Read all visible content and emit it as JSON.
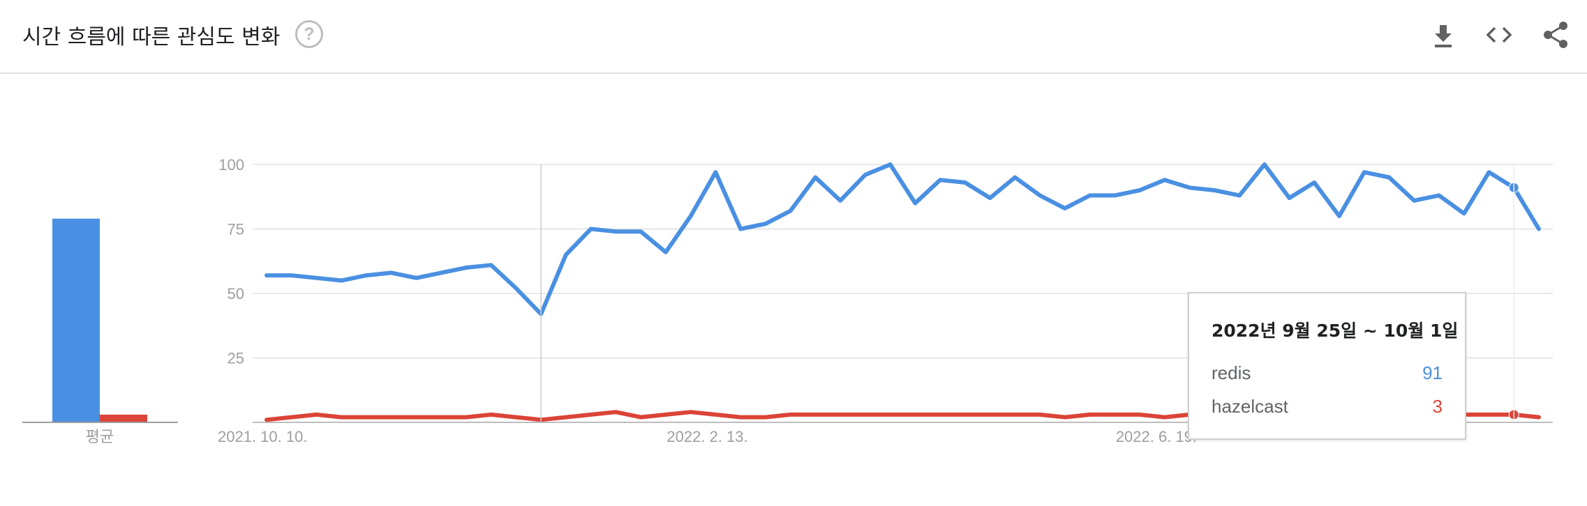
{
  "header": {
    "title": "시간 흐름에 따른 관심도 변화",
    "help_icon_glyph": "?",
    "icons": [
      "download-icon",
      "embed-code-icon",
      "share-icon"
    ]
  },
  "colors": {
    "redis": "#4a90e2",
    "hazelcast": "#db4437",
    "grid": "#e0e0e0",
    "axis_text": "#9e9e9e"
  },
  "chart_data": [
    {
      "type": "bar",
      "categories": [
        "평균"
      ],
      "series": [
        {
          "name": "redis",
          "values": [
            79
          ]
        },
        {
          "name": "hazelcast",
          "values": [
            3
          ]
        }
      ],
      "ylim": [
        0,
        100
      ]
    },
    {
      "type": "line",
      "x": [
        "2021. 10. 10.",
        "2021. 10. 17.",
        "2021. 10. 24.",
        "2021. 10. 31.",
        "2021. 11. 7.",
        "2021. 11. 14.",
        "2021. 11. 21.",
        "2021. 11. 28.",
        "2021. 12. 5.",
        "2021. 12. 12.",
        "2021. 12. 19.",
        "2021. 12. 26.",
        "2022. 1. 2.",
        "2022. 1. 9.",
        "2022. 1. 16.",
        "2022. 1. 23.",
        "2022. 1. 30.",
        "2022. 2. 6.",
        "2022. 2. 13.",
        "2022. 2. 20.",
        "2022. 2. 27.",
        "2022. 3. 6.",
        "2022. 3. 13.",
        "2022. 3. 20.",
        "2022. 3. 27.",
        "2022. 4. 3.",
        "2022. 4. 10.",
        "2022. 4. 17.",
        "2022. 4. 24.",
        "2022. 5. 1.",
        "2022. 5. 8.",
        "2022. 5. 15.",
        "2022. 5. 22.",
        "2022. 5. 29.",
        "2022. 6. 5.",
        "2022. 6. 12.",
        "2022. 6. 19.",
        "2022. 6. 26.",
        "2022. 7. 3.",
        "2022. 7. 10.",
        "2022. 7. 17.",
        "2022. 7. 24.",
        "2022. 7. 31.",
        "2022. 8. 7.",
        "2022. 8. 14.",
        "2022. 8. 21.",
        "2022. 8. 28.",
        "2022. 9. 4.",
        "2022. 9. 11.",
        "2022. 9. 18.",
        "2022. 9. 25.",
        "2022. 10. 2."
      ],
      "series": [
        {
          "name": "redis",
          "values": [
            57,
            57,
            56,
            55,
            57,
            58,
            56,
            58,
            60,
            61,
            52,
            42,
            65,
            75,
            74,
            74,
            66,
            80,
            97,
            75,
            77,
            82,
            95,
            86,
            96,
            100,
            85,
            94,
            93,
            87,
            95,
            88,
            83,
            88,
            88,
            90,
            94,
            91,
            90,
            88,
            100,
            87,
            93,
            80,
            97,
            95,
            86,
            88,
            81,
            97,
            91,
            75
          ]
        },
        {
          "name": "hazelcast",
          "values": [
            1,
            2,
            3,
            2,
            2,
            2,
            2,
            2,
            2,
            3,
            2,
            1,
            2,
            3,
            4,
            2,
            3,
            4,
            3,
            2,
            2,
            3,
            3,
            3,
            3,
            3,
            3,
            3,
            3,
            3,
            3,
            3,
            2,
            3,
            3,
            3,
            2,
            3,
            3,
            3,
            3,
            3,
            3,
            2,
            3,
            3,
            3,
            3,
            3,
            3,
            3,
            2
          ]
        }
      ],
      "yticks": [
        "25",
        "50",
        "75",
        "100"
      ],
      "ylim": [
        0,
        100
      ],
      "xtick_labels": [
        {
          "label": "2021. 10. 10.",
          "index": 0
        },
        {
          "label": "2022. 2. 13.",
          "index": 18
        },
        {
          "label": "2022. 6. 19.",
          "index": 36
        }
      ],
      "hover_index": 11,
      "highlight_index": 50
    }
  ],
  "tooltip": {
    "title": "2022년 9월 25일 ~ 10월 1일",
    "rows": [
      {
        "name": "redis",
        "value": "91",
        "color": "#4a90e2"
      },
      {
        "name": "hazelcast",
        "value": "3",
        "color": "#db4437"
      }
    ]
  }
}
